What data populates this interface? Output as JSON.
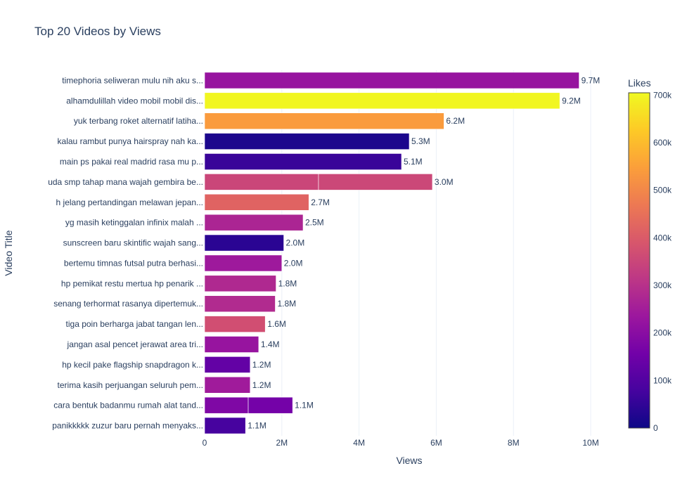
{
  "chart_data": {
    "type": "bar",
    "orientation": "horizontal",
    "title": "Top 20 Videos by Views",
    "xlabel": "Views",
    "ylabel": "Video Title",
    "xlim": [
      0,
      10400000
    ],
    "x_ticks": [
      0,
      2000000,
      4000000,
      6000000,
      8000000,
      10000000
    ],
    "x_tick_labels": [
      "0",
      "2M",
      "4M",
      "6M",
      "8M",
      "10M"
    ],
    "grid": true,
    "colorbar": {
      "title": "Likes",
      "range": [
        0,
        705000
      ],
      "ticks": [
        0,
        100000,
        200000,
        300000,
        400000,
        500000,
        600000,
        700000
      ],
      "tick_labels": [
        "0",
        "100k",
        "200k",
        "300k",
        "400k",
        "500k",
        "600k",
        "700k"
      ],
      "colorscale": [
        "#0d0887",
        "#46039f",
        "#7201a8",
        "#9c179e",
        "#bd3786",
        "#d8576b",
        "#ed7953",
        "#fb9f3a",
        "#fdca26",
        "#f0f921"
      ]
    },
    "categories": [
      "timephoria seliweran mulu nih aku s...",
      "alhamdulillah video mobil mobil dis...",
      "yuk terbang roket alternatif latiha...",
      "kalau rambut punya hairspray nah ka...",
      "main ps pakai real madrid rasa mu p...",
      "uda smp tahap mana wajah gembira be...",
      "h jelang pertandingan melawan jepan...",
      "yg masih ketinggalan infinix malah ...",
      "sunscreen baru skintific wajah sang...",
      "bertemu timnas futsal putra berhasi...",
      "hp pemikat restu mertua hp penarik ...",
      "senang terhormat rasanya dipertemuk...",
      "tiga poin berharga jabat tangan len...",
      "jangan asal pencet jerawat area tri...",
      "hp kecil pake flagship snapdragon k...",
      "terima kasih perjuangan seluruh pem...",
      "cara bentuk badanmu rumah alat tand...",
      "panikkkkk zuzur baru pernah menyaks..."
    ],
    "segments": [
      [
        {
          "views": 9700000,
          "likes": 225000
        }
      ],
      [
        {
          "views": 9200000,
          "likes": 700000
        }
      ],
      [
        {
          "views": 6200000,
          "likes": 540000
        }
      ],
      [
        {
          "views": 5300000,
          "likes": 20000
        }
      ],
      [
        {
          "views": 5100000,
          "likes": 60000
        }
      ],
      [
        {
          "views": 2950000,
          "likes": 350000
        },
        {
          "views": 2950000,
          "likes": 355000
        }
      ],
      [
        {
          "views": 2700000,
          "likes": 420000
        }
      ],
      [
        {
          "views": 2550000,
          "likes": 270000
        }
      ],
      [
        {
          "views": 2050000,
          "likes": 40000
        }
      ],
      [
        {
          "views": 2000000,
          "likes": 240000
        }
      ],
      [
        {
          "views": 1850000,
          "likes": 280000
        }
      ],
      [
        {
          "views": 1830000,
          "likes": 285000
        }
      ],
      [
        {
          "views": 1570000,
          "likes": 370000
        }
      ],
      [
        {
          "views": 1400000,
          "likes": 225000
        }
      ],
      [
        {
          "views": 1180000,
          "likes": 130000
        }
      ],
      [
        {
          "views": 1180000,
          "likes": 245000
        }
      ],
      [
        {
          "views": 1130000,
          "likes": 180000
        },
        {
          "views": 1150000,
          "likes": 160000
        }
      ],
      [
        {
          "views": 1060000,
          "likes": 80000
        }
      ]
    ],
    "labels": [
      "9.7M",
      "9.2M",
      "6.2M",
      "5.3M",
      "5.1M",
      "3.0M",
      "2.7M",
      "2.5M",
      "2.0M",
      "2.0M",
      "1.8M",
      "1.8M",
      "1.6M",
      "1.4M",
      "1.2M",
      "1.2M",
      "1.1M",
      "1.1M"
    ]
  }
}
